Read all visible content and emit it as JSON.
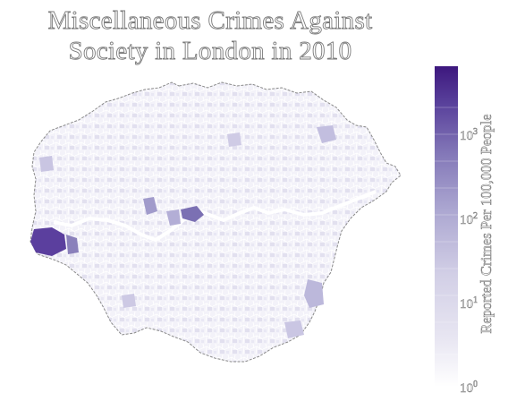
{
  "title_line1": "Miscellaneous Crimes Against",
  "title_line2": "Society in London in 2010",
  "colorbar": {
    "label": "Reported Crimes Per 100,000 People",
    "scale": "log",
    "range": [
      1,
      6000
    ],
    "ticks": [
      {
        "base": "10",
        "exp": "0"
      },
      {
        "base": "10",
        "exp": "1"
      },
      {
        "base": "10",
        "exp": "2"
      },
      {
        "base": "10",
        "exp": "3"
      }
    ],
    "colors": [
      "#ffffff",
      "#e8e6f2",
      "#cfcce4",
      "#aba6d0",
      "#8479b8",
      "#5b449c",
      "#3f1a7f"
    ]
  },
  "map_highlights": [
    {
      "area": "Heathrow / far west",
      "level": "very-high"
    },
    {
      "area": "Westminster / central",
      "level": "high"
    }
  ]
}
